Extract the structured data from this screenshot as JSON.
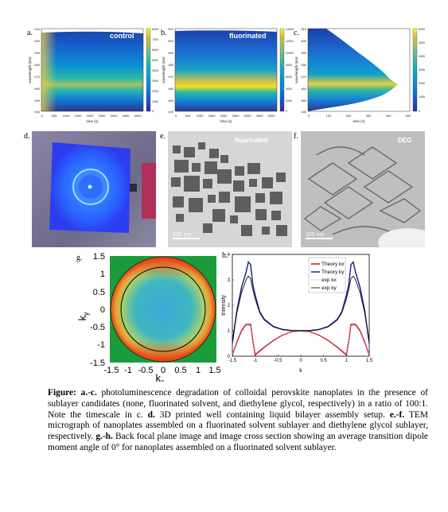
{
  "panels": {
    "a": {
      "label": "a.",
      "tag": "control"
    },
    "b": {
      "label": "b.",
      "tag": "fluorinated"
    },
    "c": {
      "label": "c.",
      "tag": "DEG"
    },
    "d": {
      "label": "d."
    },
    "e": {
      "label": "e.",
      "tag": "fluorinated",
      "scalebar": "100 nm"
    },
    "f": {
      "label": "f.",
      "tag": "DEG",
      "scalebar": "100 nm"
    },
    "g": {
      "label": "g."
    },
    "h": {
      "label": "h."
    }
  },
  "heatmaps": {
    "ylabel": "wavelength (nm)",
    "xlabel": "time (s)",
    "yticks": [
      "510",
      "500",
      "490",
      "480",
      "470",
      "460",
      "450",
      "440"
    ],
    "ab_xticks": [
      "0",
      "500",
      "1000",
      "1500",
      "2000",
      "2500",
      "3000",
      "3500",
      "4000"
    ],
    "c_xticks": [
      "0",
      "100",
      "200",
      "300",
      "400",
      "500"
    ],
    "a_cbar": [
      "8000",
      "7000",
      "6000",
      "5000",
      "4000",
      "3000",
      "2000",
      "1000",
      "0"
    ],
    "b_cbar": [
      "14000",
      "12000",
      "10000",
      "8000",
      "6000",
      "4000",
      "2000",
      "0"
    ],
    "c_cbar": [
      "6000",
      "5000",
      "4000",
      "3000",
      "2000",
      "1000",
      "0"
    ]
  },
  "g_plot": {
    "ticks": [
      "1.5",
      "1",
      "0.5",
      "0",
      "-0.5",
      "-1",
      "-1.5"
    ],
    "xticks": [
      "-1.5",
      "-1",
      "-0.5",
      "0",
      "0.5",
      "1",
      "1.5"
    ],
    "xlabel_main": "k",
    "xlabel_sub": "x",
    "ylabel_main": "k",
    "ylabel_sub": "y"
  },
  "chart_data": {
    "type": "line",
    "xlabel": "k",
    "ylabel": "Intensity",
    "xlim": [
      -1.5,
      1.5
    ],
    "ylim": [
      0,
      4
    ],
    "xticks": [
      "-1.5",
      "-1",
      "-0.5",
      "0",
      "0.5",
      "1",
      "1.5"
    ],
    "yticks": [
      "0",
      "1",
      "2",
      "3",
      "4"
    ],
    "legend": "top-right",
    "series": [
      {
        "name": "Theory kx",
        "color": "#c8102e",
        "x": [
          -1.5,
          -1.4,
          -1.3,
          -1.2,
          -1.1,
          -1.05,
          -1.0,
          -0.8,
          -0.6,
          -0.4,
          -0.2,
          0,
          0.2,
          0.4,
          0.6,
          0.8,
          1.0,
          1.05,
          1.1,
          1.2,
          1.3,
          1.4,
          1.5
        ],
        "y": [
          0.05,
          0.55,
          1.0,
          1.25,
          1.25,
          0.6,
          0.05,
          0.35,
          0.62,
          0.83,
          0.96,
          1.0,
          0.96,
          0.83,
          0.62,
          0.35,
          0.05,
          0.6,
          1.25,
          1.25,
          1.0,
          0.55,
          0.05
        ]
      },
      {
        "name": "Theory ky",
        "color": "#1f2a8a",
        "x": [
          -1.5,
          -1.4,
          -1.3,
          -1.2,
          -1.15,
          -1.1,
          -1.05,
          -1.0,
          -0.9,
          -0.8,
          -0.6,
          -0.4,
          -0.2,
          0,
          0.2,
          0.4,
          0.6,
          0.8,
          0.9,
          1.0,
          1.05,
          1.1,
          1.15,
          1.2,
          1.3,
          1.4,
          1.5
        ],
        "y": [
          0.5,
          1.8,
          2.7,
          3.3,
          3.7,
          3.6,
          2.8,
          2.4,
          1.75,
          1.45,
          1.17,
          1.05,
          1.01,
          1.0,
          1.01,
          1.05,
          1.17,
          1.45,
          1.75,
          2.4,
          2.8,
          3.6,
          3.7,
          3.3,
          2.7,
          1.8,
          0.5
        ]
      },
      {
        "name": "exp kx",
        "color": "#d9a0a0",
        "x": [
          -1.5,
          -1.4,
          -1.3,
          -1.2,
          -1.1,
          -1.05,
          -1.0,
          -0.8,
          -0.6,
          -0.4,
          -0.2,
          0,
          0.2,
          0.4,
          0.6,
          0.8,
          1.0,
          1.05,
          1.1,
          1.2,
          1.3,
          1.4,
          1.5
        ],
        "y": [
          0.1,
          0.5,
          0.95,
          1.2,
          1.2,
          0.65,
          0.1,
          0.38,
          0.64,
          0.84,
          0.96,
          1.0,
          0.96,
          0.84,
          0.64,
          0.38,
          0.1,
          0.65,
          1.2,
          1.2,
          0.95,
          0.5,
          0.1
        ]
      },
      {
        "name": "exp ky",
        "color": "#111111",
        "x": [
          -1.5,
          -1.4,
          -1.3,
          -1.2,
          -1.15,
          -1.1,
          -1.05,
          -1.0,
          -0.9,
          -0.8,
          -0.6,
          -0.4,
          -0.2,
          0,
          0.2,
          0.4,
          0.6,
          0.8,
          0.9,
          1.0,
          1.05,
          1.1,
          1.15,
          1.2,
          1.3,
          1.4,
          1.5
        ],
        "y": [
          0.6,
          1.7,
          2.5,
          3.0,
          3.15,
          3.05,
          2.6,
          2.25,
          1.7,
          1.42,
          1.15,
          1.04,
          1.0,
          1.0,
          1.0,
          1.04,
          1.15,
          1.42,
          1.7,
          2.25,
          2.6,
          3.05,
          3.15,
          3.0,
          2.5,
          1.7,
          0.6
        ]
      }
    ]
  },
  "caption": {
    "figure_label": "Figure:",
    "ref_ac": "a.-c.",
    "text_1": " photoluminescence degradation of colloidal perovskite nanoplates in the presence of sublayer candidates (none, fluorinated solvent, and diethylene glycol, respectively) in a ratio of 100:1. Note the timescale in c. ",
    "ref_d": "d.",
    "text_2": " 3D printed well containing liquid bilayer assembly setup. ",
    "ref_ef": "e.-f.",
    "text_3": " TEM micrograph of nanoplates assembled on a fluorinated solvent sublayer and diethylene glycol sublayer, respectively. ",
    "ref_gh": "g.-h.",
    "text_4": " Back focal plane image and image cross section showing an average transition dipole moment angle of 0° for nanoplates assembled on a fluorinated solvent sublayer."
  }
}
